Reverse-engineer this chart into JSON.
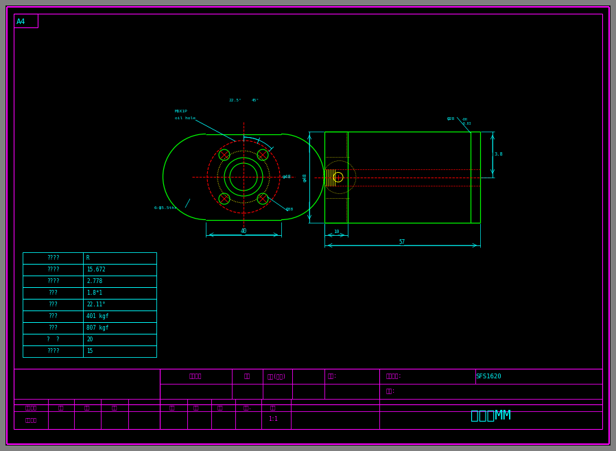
{
  "bg_color": "#000000",
  "gray_border": "#808080",
  "cyan": "#00ffff",
  "green": "#00ff00",
  "red": "#ff0000",
  "yellow": "#ffff00",
  "magenta": "#ff00ff",
  "fig_width": 8.98,
  "fig_height": 6.58,
  "table_rows": [
    [
      "????",
      "R"
    ],
    [
      "????",
      "15.672"
    ],
    [
      "????",
      "2.778"
    ],
    [
      "???",
      "1.8*1"
    ],
    [
      "???",
      "22.11°"
    ],
    [
      "???",
      "401 kgf"
    ],
    [
      "???",
      "807 kgf"
    ],
    [
      "?  ?",
      "20"
    ],
    [
      "????",
      "15"
    ]
  ],
  "title_block_labels": {
    "customer": "客户名称",
    "date": "日期",
    "quantity": "数量(单台)",
    "drawing_no": "图号:",
    "material": "材料:",
    "storage_no": "存檔图号:",
    "sfs_no": "SFS1620",
    "draw": "绘图",
    "design": "设计",
    "check": "审核",
    "view": "视角.",
    "scale": "比例",
    "scale_val": "1:1",
    "unit": "单位：MM",
    "changes": "更改标记",
    "process": "处象",
    "day": "日期",
    "sign": "签名",
    "customer_confirm": "客户确认"
  }
}
